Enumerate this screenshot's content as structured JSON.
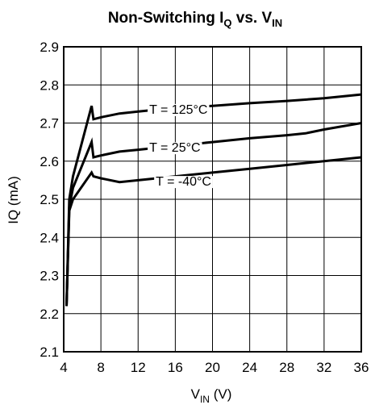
{
  "chart_data": {
    "type": "line",
    "title": "Non-Switching I",
    "title_sub1": "Q",
    "title_mid": " vs. V",
    "title_sub2": "IN",
    "xlabel": "V",
    "xlabel_sub": "IN",
    "xlabel_unit": " (V)",
    "ylabel": "IQ (mA)",
    "xlim": [
      4,
      36
    ],
    "ylim": [
      2.1,
      2.9
    ],
    "x_ticks": [
      4,
      8,
      12,
      16,
      20,
      24,
      28,
      32,
      36
    ],
    "y_ticks": [
      2.1,
      2.2,
      2.3,
      2.4,
      2.5,
      2.6,
      2.7,
      2.8,
      2.9
    ],
    "grid": true,
    "series": [
      {
        "name": "T = 125°C",
        "x": [
          4.3,
          4.6,
          5.0,
          7.0,
          7.2,
          8.0,
          10,
          12,
          16,
          20,
          24,
          28,
          32,
          36
        ],
        "y": [
          2.22,
          2.5,
          2.56,
          2.745,
          2.71,
          2.715,
          2.725,
          2.73,
          2.74,
          2.745,
          2.752,
          2.758,
          2.765,
          2.775
        ]
      },
      {
        "name": "T = 25°C",
        "x": [
          4.3,
          4.6,
          5.0,
          7.0,
          7.2,
          8.0,
          10,
          12,
          16,
          20,
          24,
          28,
          30,
          32,
          36
        ],
        "y": [
          2.22,
          2.48,
          2.53,
          2.65,
          2.61,
          2.615,
          2.625,
          2.63,
          2.64,
          2.65,
          2.66,
          2.668,
          2.673,
          2.683,
          2.7
        ]
      },
      {
        "name": "T = -40°C",
        "x": [
          4.3,
          4.6,
          5.0,
          7.0,
          7.2,
          8.0,
          10,
          12,
          16,
          20,
          24,
          28,
          32,
          36
        ],
        "y": [
          2.22,
          2.47,
          2.5,
          2.57,
          2.56,
          2.555,
          2.545,
          2.55,
          2.56,
          2.57,
          2.58,
          2.59,
          2.6,
          2.61
        ]
      }
    ]
  }
}
